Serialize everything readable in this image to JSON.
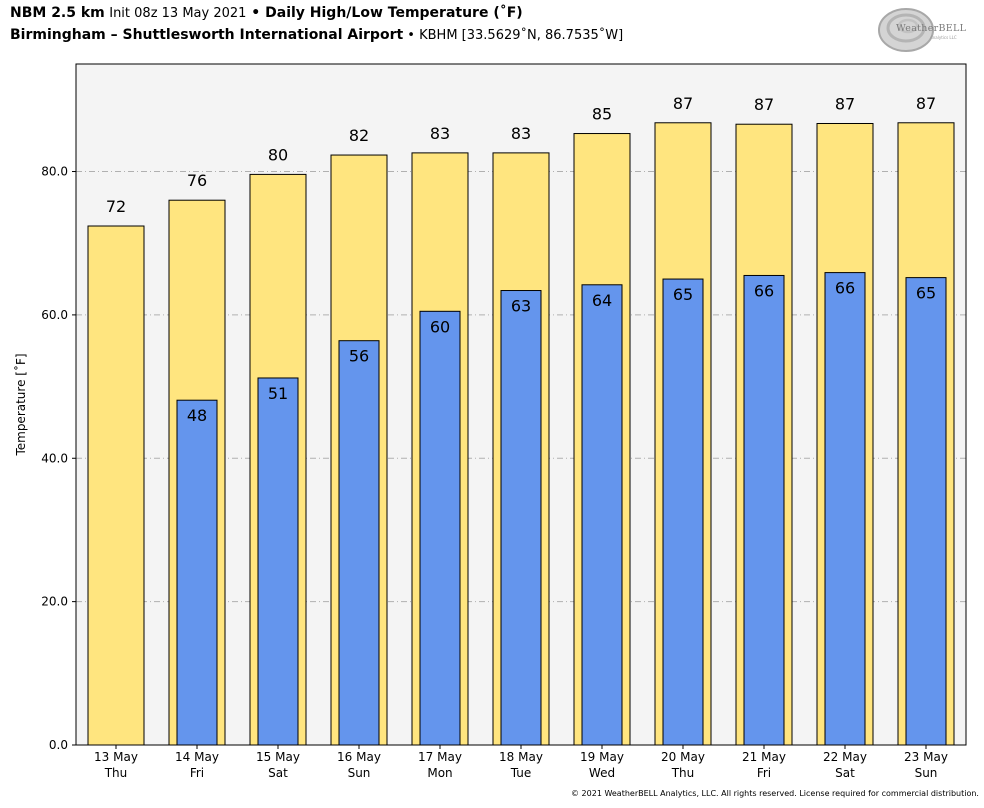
{
  "header": {
    "model": "NBM 2.5 km",
    "init": "Init 08z 13 May 2021",
    "sep": " • ",
    "title": "Daily High/Low Temperature (˚F)",
    "location": "Birmingham – Shuttlesworth International Airport",
    "station": "KBHM [33.5629˚N, 86.7535˚W]"
  },
  "logo": {
    "text": "WeatherBELL",
    "subtext": "Analytics LLC"
  },
  "copyright": "© 2021 WeatherBELL Analytics, LLC. All rights reserved. License required for commercial distribution.",
  "chart_data": {
    "type": "bar",
    "ylabel": "Temperature [˚F]",
    "ylim": [
      0,
      95
    ],
    "yticks": [
      "0.0",
      "20.0",
      "40.0",
      "60.0",
      "80.0"
    ],
    "ytick_values": [
      0,
      20,
      40,
      60,
      80
    ],
    "grid": true,
    "categories": [
      "13 May",
      "14 May",
      "15 May",
      "16 May",
      "17 May",
      "18 May",
      "19 May",
      "20 May",
      "21 May",
      "22 May",
      "23 May"
    ],
    "weekdays": [
      "Thu",
      "Fri",
      "Sat",
      "Sun",
      "Mon",
      "Tue",
      "Wed",
      "Thu",
      "Fri",
      "Sat",
      "Sun"
    ],
    "series": [
      {
        "values": [
          72.4,
          76.0,
          79.6,
          82.3,
          82.6,
          82.6,
          85.3,
          86.8,
          86.6,
          86.7,
          86.8
        ],
        "labels": [
          "72",
          "76",
          "80",
          "82",
          "83",
          "83",
          "85",
          "87",
          "87",
          "87",
          "87"
        ],
        "color": "#ffe57f"
      },
      {
        "values": [
          null,
          48.1,
          51.2,
          56.4,
          60.5,
          63.4,
          64.2,
          65.0,
          65.5,
          65.9,
          65.2
        ],
        "labels": [
          "",
          "48",
          "51",
          "56",
          "60",
          "63",
          "64",
          "65",
          "66",
          "66",
          "65"
        ],
        "color": "#6495ed"
      }
    ],
    "plot_background": "#f4f4f4"
  }
}
